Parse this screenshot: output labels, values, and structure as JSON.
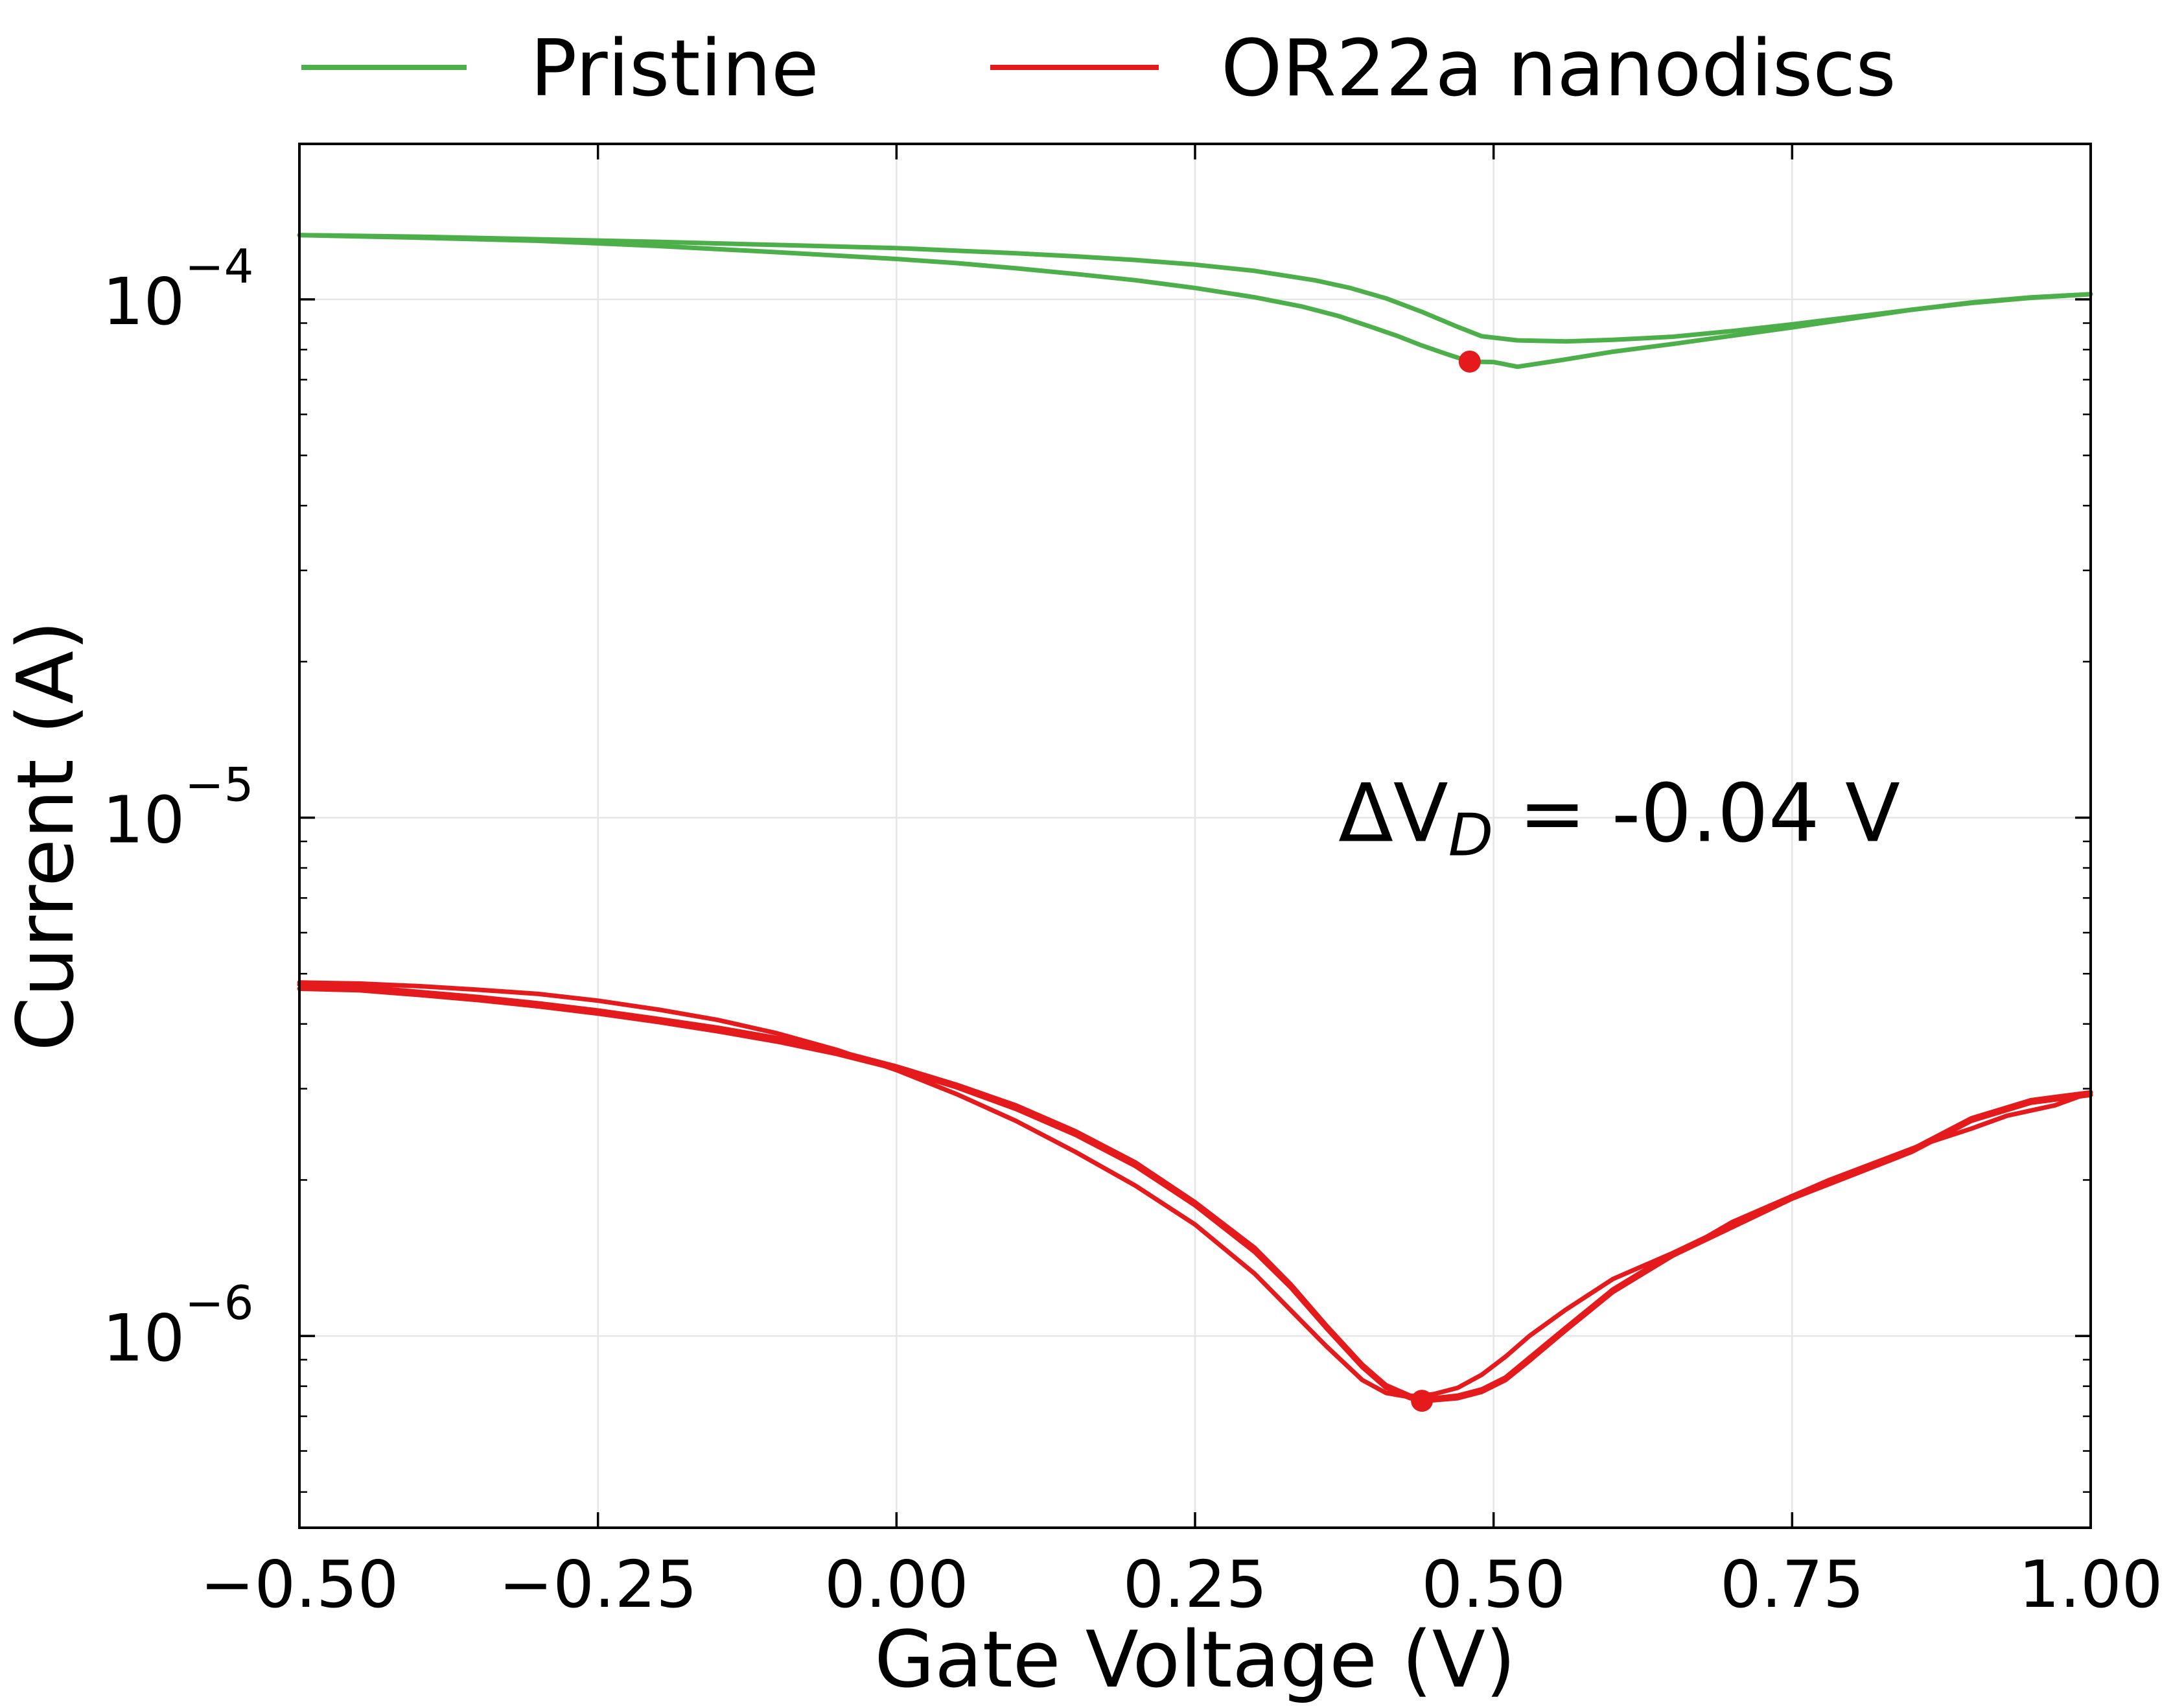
{
  "chart_data": {
    "type": "line",
    "xlabel": "Gate Voltage (V)",
    "ylabel": "Current (A)",
    "xlim": [
      -0.5,
      1.0
    ],
    "ylim_log10": [
      -6.37,
      -3.7
    ],
    "yscale": "log",
    "grid": true,
    "legend": {
      "placement": "top",
      "layout": "horizontal"
    },
    "xticks": [
      {
        "value": -0.5,
        "label": "−0.50"
      },
      {
        "value": -0.25,
        "label": "−0.25"
      },
      {
        "value": 0.0,
        "label": "0.00"
      },
      {
        "value": 0.25,
        "label": "0.25"
      },
      {
        "value": 0.5,
        "label": "0.50"
      },
      {
        "value": 0.75,
        "label": "0.75"
      },
      {
        "value": 1.0,
        "label": "1.00"
      }
    ],
    "yticks": [
      {
        "value": -4,
        "base": "10",
        "exp": "−4"
      },
      {
        "value": -5,
        "base": "10",
        "exp": "−5"
      },
      {
        "value": -6,
        "base": "10",
        "exp": "−6"
      }
    ],
    "annotation": {
      "prefix": "ΔV",
      "subscript": "D",
      "suffix": " = -0.04 V",
      "x": 0.37,
      "y_log10": -4.99
    },
    "series": [
      {
        "name": "Pristine",
        "color": "#4daf4a",
        "sweeps": [
          {
            "x": [
              -0.5,
              -0.4,
              -0.3,
              -0.2,
              -0.1,
              0.0,
              0.05,
              0.1,
              0.15,
              0.2,
              0.25,
              0.3,
              0.35,
              0.38,
              0.41,
              0.44,
              0.47,
              0.49,
              0.52,
              0.56,
              0.6,
              0.65,
              0.7,
              0.75,
              0.8,
              0.85,
              0.9,
              0.95,
              1.0
            ],
            "y": [
              -3.876,
              -3.879,
              -3.884,
              -3.889,
              -3.895,
              -3.901,
              -3.906,
              -3.911,
              -3.917,
              -3.924,
              -3.933,
              -3.945,
              -3.963,
              -3.978,
              -3.998,
              -4.024,
              -4.053,
              -4.071,
              -4.079,
              -4.081,
              -4.078,
              -4.072,
              -4.061,
              -4.048,
              -4.034,
              -4.02,
              -4.007,
              -3.997,
              -3.99
            ]
          },
          {
            "x": [
              1.0,
              0.95,
              0.9,
              0.85,
              0.8,
              0.75,
              0.7,
              0.65,
              0.6,
              0.56,
              0.52,
              0.5,
              0.48,
              0.46,
              0.44,
              0.42,
              0.4,
              0.37,
              0.34,
              0.3,
              0.25,
              0.2,
              0.15,
              0.1,
              0.05,
              0.0,
              -0.1,
              -0.2,
              -0.3,
              -0.4,
              -0.5
            ],
            "y": [
              -3.99,
              -3.996,
              -4.006,
              -4.02,
              -4.037,
              -4.054,
              -4.07,
              -4.086,
              -4.101,
              -4.116,
              -4.13,
              -4.121,
              -4.12,
              -4.105,
              -4.089,
              -4.071,
              -4.055,
              -4.032,
              -4.014,
              -3.996,
              -3.978,
              -3.963,
              -3.951,
              -3.94,
              -3.93,
              -3.922,
              -3.909,
              -3.897,
              -3.887,
              -3.881,
              -3.876
            ]
          }
        ],
        "marker": {
          "x": 0.48,
          "y_log10": -4.12
        }
      },
      {
        "name": "OR22a nanodiscs",
        "color": "#e41a1c",
        "sweeps": [
          {
            "x": [
              -0.5,
              -0.45,
              -0.4,
              -0.35,
              -0.3,
              -0.25,
              -0.2,
              -0.15,
              -0.1,
              -0.05,
              0.0,
              0.05,
              0.1,
              0.15,
              0.2,
              0.25,
              0.3,
              0.33,
              0.36,
              0.39,
              0.41,
              0.43,
              0.45,
              0.47,
              0.49,
              0.51,
              0.53,
              0.56,
              0.6,
              0.65,
              0.7,
              0.75,
              0.8,
              0.85,
              0.9,
              0.95,
              1.0
            ],
            "y": [
              -5.322,
              -5.326,
              -5.336,
              -5.346,
              -5.358,
              -5.372,
              -5.388,
              -5.405,
              -5.425,
              -5.45,
              -5.48,
              -5.515,
              -5.555,
              -5.605,
              -5.665,
              -5.742,
              -5.83,
              -5.9,
              -5.98,
              -6.055,
              -6.095,
              -6.115,
              -6.12,
              -6.115,
              -6.103,
              -6.08,
              -6.042,
              -5.985,
              -5.91,
              -5.84,
              -5.785,
              -5.73,
              -5.685,
              -5.64,
              -5.58,
              -5.545,
              -5.53
            ]
          },
          {
            "x": [
              1.0,
              0.97,
              0.93,
              0.9,
              0.86,
              0.82,
              0.78,
              0.74,
              0.7,
              0.67,
              0.64,
              0.6,
              0.56,
              0.53,
              0.51,
              0.49,
              0.47,
              0.45,
              0.43,
              0.41,
              0.39,
              0.36,
              0.33,
              0.3,
              0.25,
              0.2,
              0.15,
              0.1,
              0.05,
              0.0,
              -0.05,
              -0.1,
              -0.15,
              -0.2,
              -0.25,
              -0.3,
              -0.35,
              -0.4,
              -0.45,
              -0.5
            ],
            "y": [
              -5.53,
              -5.555,
              -5.575,
              -5.6,
              -5.63,
              -5.665,
              -5.7,
              -5.74,
              -5.78,
              -5.82,
              -5.85,
              -5.89,
              -5.95,
              -6.0,
              -6.04,
              -6.075,
              -6.1,
              -6.112,
              -6.118,
              -6.11,
              -6.085,
              -6.02,
              -5.95,
              -5.88,
              -5.785,
              -5.71,
              -5.645,
              -5.585,
              -5.533,
              -5.487,
              -5.448,
              -5.416,
              -5.39,
              -5.37,
              -5.353,
              -5.34,
              -5.332,
              -5.325,
              -5.32,
              -5.318
            ]
          },
          {
            "x": [
              -0.5,
              -0.45,
              -0.4,
              -0.35,
              -0.3,
              -0.25,
              -0.2,
              -0.15,
              -0.1,
              -0.05,
              0.0,
              0.05,
              0.1,
              0.15,
              0.2,
              0.25,
              0.3,
              0.33,
              0.36,
              0.39,
              0.41,
              0.43,
              0.45,
              0.47,
              0.49,
              0.51,
              0.53,
              0.56,
              0.6,
              0.65,
              0.7,
              0.75,
              0.8,
              0.85,
              0.9,
              0.95,
              1.0
            ],
            "y": [
              -5.33,
              -5.333,
              -5.342,
              -5.352,
              -5.364,
              -5.378,
              -5.394,
              -5.412,
              -5.432,
              -5.456,
              -5.485,
              -5.52,
              -5.562,
              -5.612,
              -5.672,
              -5.748,
              -5.838,
              -5.906,
              -5.985,
              -6.06,
              -6.1,
              -6.12,
              -6.124,
              -6.12,
              -6.108,
              -6.085,
              -6.048,
              -5.99,
              -5.915,
              -5.845,
              -5.79,
              -5.735,
              -5.69,
              -5.645,
              -5.585,
              -5.55,
              -5.535
            ]
          }
        ],
        "marker": {
          "x": 0.44,
          "y_log10": -6.125
        }
      }
    ]
  }
}
